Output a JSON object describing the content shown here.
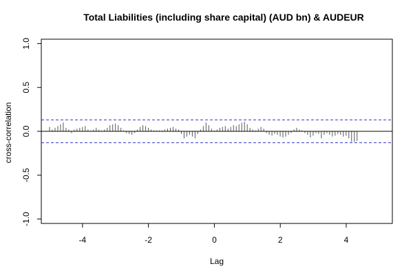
{
  "chart_data": {
    "type": "bar",
    "title": "Total Liabilities (including share capital) (AUD bn)  & AUDEUR",
    "xlabel": "Lag",
    "ylabel": "cross-correlation",
    "xlim": [
      -5.25,
      5.4
    ],
    "ylim": [
      -1.05,
      1.05
    ],
    "x_ticks": [
      -4,
      -2,
      0,
      2,
      4
    ],
    "y_ticks": [
      -1.0,
      -0.5,
      0.0,
      0.5,
      1.0
    ],
    "x_tick_labels": [
      "-4",
      "-2",
      "0",
      "2",
      "4"
    ],
    "y_tick_labels": [
      "-1.0",
      "-0.5",
      "0.0",
      "0.5",
      "1.0"
    ],
    "confidence_bound": 0.13,
    "colors": {
      "bars": "#555555",
      "zero_line": "#000000",
      "confidence": "#3333cc"
    },
    "lag_start": -5.0,
    "lag_step": 0.0833,
    "values": [
      0.05,
      0.02,
      0.04,
      0.06,
      0.08,
      0.1,
      0.04,
      0.02,
      -0.02,
      0.02,
      0.03,
      0.04,
      0.05,
      0.06,
      0.02,
      0.01,
      0.02,
      0.04,
      0.02,
      0.01,
      0.02,
      0.04,
      0.07,
      0.08,
      0.09,
      0.07,
      0.04,
      0.01,
      -0.02,
      -0.03,
      -0.04,
      -0.02,
      0.02,
      0.05,
      0.07,
      0.06,
      0.04,
      0.02,
      0.01,
      0.01,
      0.01,
      0.01,
      0.02,
      0.03,
      0.04,
      0.05,
      0.03,
      0.02,
      -0.03,
      -0.08,
      -0.06,
      -0.04,
      -0.06,
      -0.08,
      -0.03,
      0.02,
      0.06,
      0.1,
      0.07,
      0.03,
      0.01,
      0.02,
      0.04,
      0.05,
      0.06,
      0.03,
      0.05,
      0.07,
      0.06,
      0.08,
      0.1,
      0.11,
      0.08,
      0.04,
      0.02,
      0.01,
      0.03,
      0.05,
      0.03,
      -0.02,
      -0.04,
      -0.05,
      -0.03,
      -0.04,
      -0.06,
      -0.07,
      -0.06,
      -0.04,
      -0.02,
      0.02,
      0.04,
      0.02,
      0.01,
      -0.02,
      -0.04,
      -0.07,
      -0.05,
      -0.02,
      -0.03,
      -0.08,
      -0.04,
      -0.02,
      -0.04,
      -0.06,
      -0.05,
      -0.03,
      -0.04,
      -0.06,
      -0.05,
      -0.08,
      -0.12,
      -0.12,
      -0.11
    ]
  }
}
